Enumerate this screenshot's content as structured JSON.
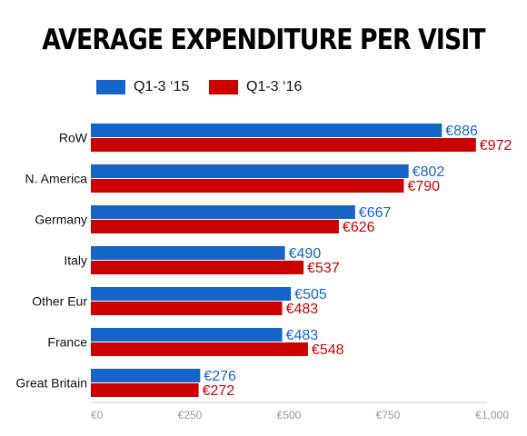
{
  "chart_data": {
    "type": "bar",
    "orientation": "horizontal",
    "title": "AVERAGE EXPENDITURE PER VISIT",
    "categories": [
      "RoW",
      "N. America",
      "Germany",
      "Italy",
      "Other Eur",
      "France",
      "Great Britain"
    ],
    "series": [
      {
        "name": "Q1-3 ‘15",
        "color": "#1565c8",
        "values": [
          886,
          802,
          667,
          490,
          505,
          483,
          276
        ],
        "labels": [
          "€886",
          "€802",
          "€667",
          "€490",
          "€505",
          "€483",
          "€276"
        ]
      },
      {
        "name": "Q1-3 ‘16",
        "color": "#cc0000",
        "values": [
          972,
          790,
          626,
          537,
          483,
          548,
          272
        ],
        "labels": [
          "€972",
          "€790",
          "€626",
          "€537",
          "€483",
          "€548",
          "€272"
        ]
      }
    ],
    "xlim": [
      0,
      1000
    ],
    "xticks": [
      0,
      250,
      500,
      750,
      1000
    ],
    "xtick_labels": [
      "€0",
      "€250",
      "€500",
      "€750",
      "€1,000"
    ],
    "xlabel": "",
    "ylabel": "",
    "grid": false,
    "legend_position": "top-left"
  }
}
